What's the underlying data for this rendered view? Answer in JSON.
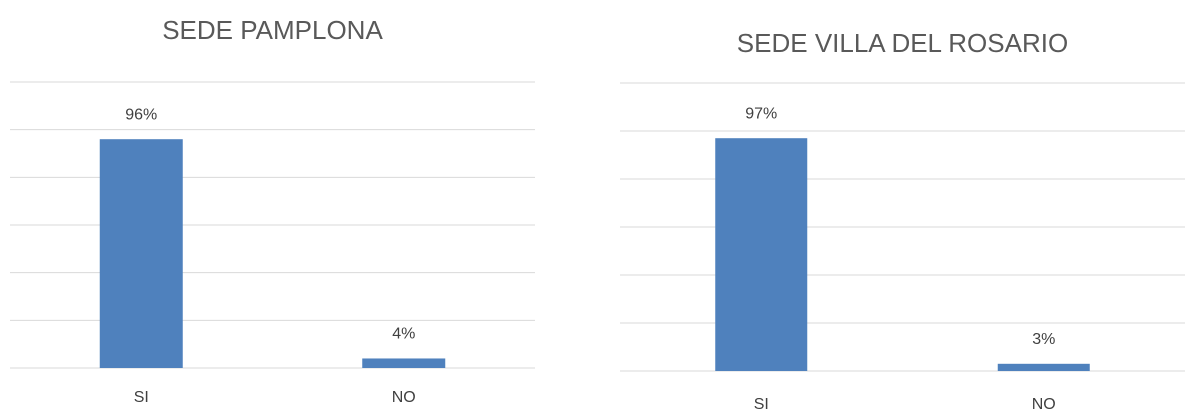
{
  "chart_data": [
    {
      "type": "bar",
      "title": "SEDE PAMPLONA",
      "categories": [
        "SI",
        "NO"
      ],
      "values": [
        96,
        4
      ],
      "value_labels": [
        "96%",
        "4%"
      ],
      "color": "#4f81bd",
      "ylim": [
        0,
        120
      ],
      "yticks": [
        0,
        20,
        40,
        60,
        80,
        100,
        120
      ],
      "grid": true
    },
    {
      "type": "bar",
      "title": "SEDE VILLA DEL ROSARIO",
      "categories": [
        "SI",
        "NO"
      ],
      "values": [
        97,
        3
      ],
      "value_labels": [
        "97%",
        "3%"
      ],
      "color": "#4f81bd",
      "ylim": [
        0,
        120
      ],
      "yticks": [
        0,
        20,
        40,
        60,
        80,
        100,
        120
      ],
      "grid": true
    }
  ]
}
